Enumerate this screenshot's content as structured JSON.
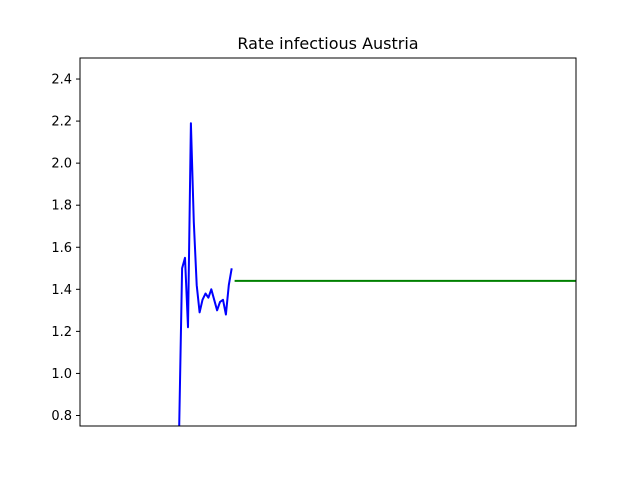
{
  "chart_data": {
    "type": "line",
    "title": "Rate infectious Austria",
    "xlabel": "",
    "ylabel": "",
    "ylim": [
      0.75,
      2.5
    ],
    "xlim": [
      -20,
      150
    ],
    "x_ticks_shown": false,
    "y_ticks": [
      0.8,
      1.0,
      1.2,
      1.4,
      1.6,
      1.8,
      2.0,
      2.2,
      2.4
    ],
    "y_tick_labels": [
      "0.8",
      "1.0",
      "1.2",
      "1.4",
      "1.6",
      "1.8",
      "2.0",
      "2.2",
      "2.4"
    ],
    "grid": false,
    "series": [
      {
        "color": "#0000ff",
        "x": [
          14,
          15,
          16,
          17,
          18,
          19,
          20,
          21,
          22,
          23,
          24,
          25,
          26,
          27,
          28,
          29,
          30,
          31,
          32
        ],
        "values": [
          0.75,
          1.5,
          1.55,
          1.22,
          2.19,
          1.72,
          1.42,
          1.29,
          1.35,
          1.38,
          1.36,
          1.4,
          1.35,
          1.3,
          1.34,
          1.35,
          1.28,
          1.42,
          1.5
        ]
      },
      {
        "color": "#008000",
        "x": [
          33,
          150
        ],
        "values": [
          1.44,
          1.44
        ]
      }
    ]
  }
}
